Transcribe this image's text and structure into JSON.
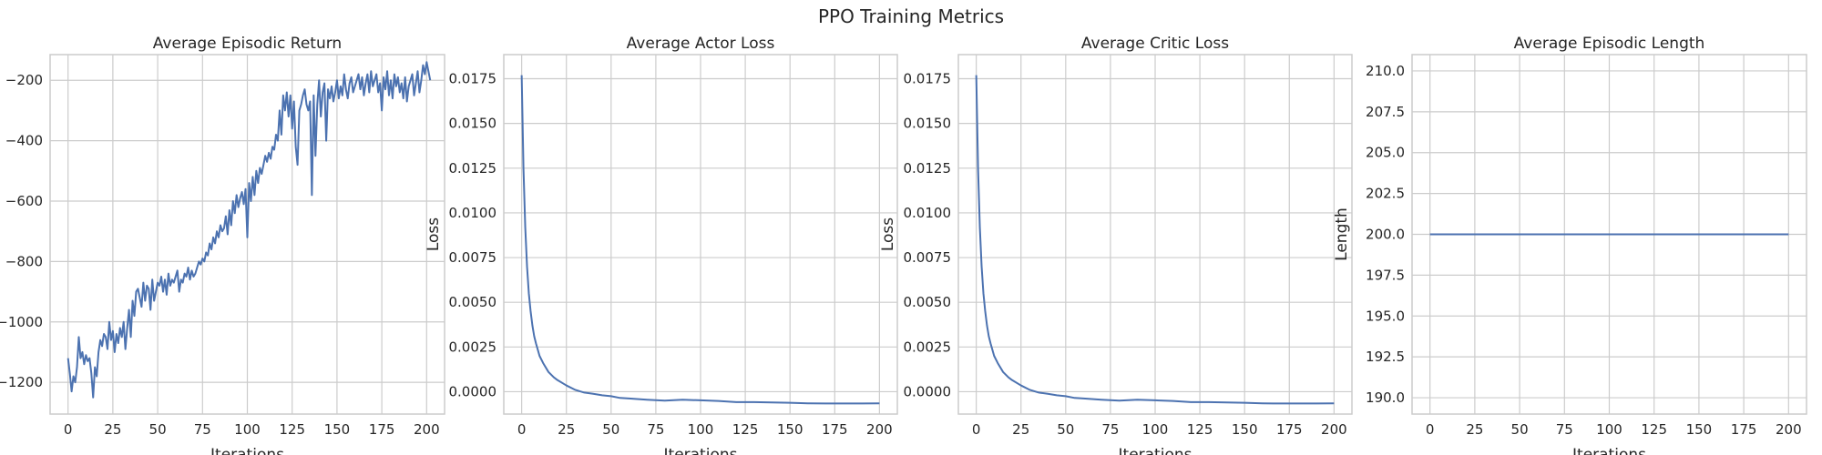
{
  "figure": {
    "title": "PPO Training Metrics"
  },
  "colors": {
    "series": "#4c72b0",
    "grid": "#cccccc",
    "text": "#262626"
  },
  "chart_data": [
    {
      "type": "line",
      "title": "Average Episodic Return",
      "xlabel": "Iterations",
      "ylabel": "",
      "xlim": [
        -10,
        210
      ],
      "ylim": [
        -1305,
        -115
      ],
      "xticks": [
        0,
        25,
        50,
        75,
        100,
        125,
        150,
        175,
        200
      ],
      "yticks": [
        -1200,
        -1000,
        -800,
        -600,
        -400,
        -200
      ],
      "ytick_labels": [
        "-1200",
        "-1000",
        "-800",
        "-600",
        "-400",
        "-200"
      ],
      "series": [
        {
          "values": [
            -1120,
            -1170,
            -1230,
            -1180,
            -1200,
            -1150,
            -1050,
            -1120,
            -1100,
            -1140,
            -1110,
            -1130,
            -1120,
            -1170,
            -1250,
            -1150,
            -1180,
            -1100,
            -1060,
            -1080,
            -1040,
            -1050,
            -1090,
            -1000,
            -1060,
            -1030,
            -1100,
            -1040,
            -1070,
            -1020,
            -1050,
            -1000,
            -1090,
            -1020,
            -960,
            -1050,
            -930,
            -980,
            -900,
            -890,
            -920,
            -950,
            -870,
            -930,
            -880,
            -890,
            -960,
            -860,
            -930,
            -900,
            -870,
            -880,
            -850,
            -900,
            -860,
            -910,
            -840,
            -880,
            -860,
            -870,
            -850,
            -830,
            -900,
            -860,
            -870,
            -840,
            -850,
            -820,
            -860,
            -830,
            -850,
            -840,
            -820,
            -800,
            -810,
            -790,
            -800,
            -770,
            -780,
            -740,
            -760,
            -720,
            -740,
            -700,
            -720,
            -680,
            -700,
            -690,
            -650,
            -710,
            -630,
            -680,
            -600,
            -640,
            -580,
            -620,
            -590,
            -570,
            -610,
            -560,
            -720,
            -540,
            -600,
            -520,
            -580,
            -500,
            -540,
            -490,
            -510,
            -480,
            -450,
            -470,
            -440,
            -460,
            -420,
            -430,
            -380,
            -400,
            -300,
            -380,
            -250,
            -300,
            -240,
            -320,
            -250,
            -360,
            -270,
            -420,
            -480,
            -300,
            -280,
            -250,
            -230,
            -280,
            -300,
            -270,
            -580,
            -250,
            -450,
            -280,
            -200,
            -320,
            -240,
            -210,
            -400,
            -230,
            -260,
            -220,
            -270,
            -240,
            -200,
            -260,
            -220,
            -250,
            -180,
            -230,
            -260,
            -210,
            -190,
            -240,
            -220,
            -200,
            -180,
            -230,
            -190,
            -250,
            -210,
            -180,
            -240,
            -170,
            -220,
            -200,
            -180,
            -240,
            -210,
            -300,
            -190,
            -230,
            -170,
            -250,
            -200,
            -260,
            -180,
            -220,
            -190,
            -240,
            -210,
            -260,
            -190,
            -270,
            -220,
            -200,
            -180,
            -250,
            -210,
            -170,
            -240,
            -200,
            -150,
            -180,
            -140,
            -170,
            -200
          ]
        }
      ]
    },
    {
      "type": "line",
      "title": "Average Actor Loss",
      "xlabel": "Iterations",
      "ylabel": "Loss",
      "xlim": [
        -10,
        210
      ],
      "ylim": [
        -0.00125,
        0.01885
      ],
      "xticks": [
        0,
        25,
        50,
        75,
        100,
        125,
        150,
        175,
        200
      ],
      "yticks": [
        0.0,
        0.0025,
        0.005,
        0.0075,
        0.01,
        0.0125,
        0.015,
        0.0175
      ],
      "ytick_labels": [
        "0.0000",
        "0.0025",
        "0.0050",
        "0.0075",
        "0.0100",
        "0.0125",
        "0.0150",
        "0.0175"
      ],
      "series": [
        {
          "x": [
            0,
            1,
            2,
            3,
            4,
            5,
            6,
            7,
            8,
            10,
            12,
            15,
            18,
            20,
            25,
            30,
            35,
            40,
            45,
            50,
            55,
            60,
            70,
            80,
            90,
            100,
            110,
            120,
            130,
            140,
            150,
            160,
            170,
            180,
            190,
            200
          ],
          "values": [
            0.0177,
            0.0125,
            0.0092,
            0.007,
            0.0055,
            0.0045,
            0.0037,
            0.0031,
            0.0027,
            0.002,
            0.0016,
            0.0011,
            0.0008,
            0.00065,
            0.00035,
            0.0001,
            -5e-05,
            -0.00012,
            -0.0002,
            -0.00025,
            -0.00035,
            -0.00038,
            -0.00045,
            -0.0005,
            -0.00045,
            -0.00048,
            -0.00052,
            -0.00058,
            -0.00058,
            -0.0006,
            -0.00062,
            -0.00065,
            -0.00066,
            -0.00066,
            -0.00066,
            -0.00065
          ]
        }
      ]
    },
    {
      "type": "line",
      "title": "Average Critic Loss",
      "xlabel": "Iterations",
      "ylabel": "Loss",
      "xlim": [
        -10,
        210
      ],
      "ylim": [
        -0.00125,
        0.01885
      ],
      "xticks": [
        0,
        25,
        50,
        75,
        100,
        125,
        150,
        175,
        200
      ],
      "yticks": [
        0.0,
        0.0025,
        0.005,
        0.0075,
        0.01,
        0.0125,
        0.015,
        0.0175
      ],
      "ytick_labels": [
        "0.0000",
        "0.0025",
        "0.0050",
        "0.0075",
        "0.0100",
        "0.0125",
        "0.0150",
        "0.0175"
      ],
      "series": [
        {
          "x": [
            0,
            1,
            2,
            3,
            4,
            5,
            6,
            7,
            8,
            10,
            12,
            15,
            18,
            20,
            25,
            30,
            35,
            40,
            45,
            50,
            55,
            60,
            70,
            80,
            90,
            100,
            110,
            120,
            130,
            140,
            150,
            160,
            170,
            180,
            190,
            200
          ],
          "values": [
            0.0177,
            0.0125,
            0.0092,
            0.007,
            0.0055,
            0.0045,
            0.0037,
            0.0031,
            0.0027,
            0.002,
            0.0016,
            0.0011,
            0.0008,
            0.00065,
            0.00035,
            0.0001,
            -5e-05,
            -0.00012,
            -0.0002,
            -0.00025,
            -0.00035,
            -0.00038,
            -0.00045,
            -0.0005,
            -0.00045,
            -0.00048,
            -0.00052,
            -0.00058,
            -0.00058,
            -0.0006,
            -0.00062,
            -0.00065,
            -0.00066,
            -0.00066,
            -0.00066,
            -0.00065
          ]
        }
      ]
    },
    {
      "type": "line",
      "title": "Average Episodic Length",
      "xlabel": "Iterations",
      "ylabel": "Length",
      "xlim": [
        -10,
        210
      ],
      "ylim": [
        189.0,
        211.0
      ],
      "xticks": [
        0,
        25,
        50,
        75,
        100,
        125,
        150,
        175,
        200
      ],
      "yticks": [
        190.0,
        192.5,
        195.0,
        197.5,
        200.0,
        202.5,
        205.0,
        207.5,
        210.0
      ],
      "ytick_labels": [
        "190.0",
        "192.5",
        "195.0",
        "197.5",
        "200.0",
        "202.5",
        "205.0",
        "207.5",
        "210.0"
      ],
      "series": [
        {
          "x": [
            0,
            200
          ],
          "values": [
            200.0,
            200.0
          ]
        }
      ]
    }
  ]
}
